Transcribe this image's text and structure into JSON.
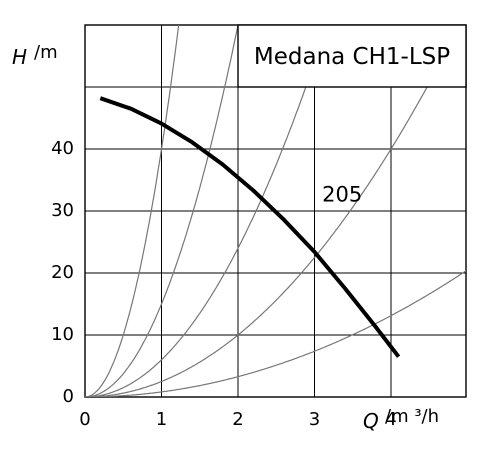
{
  "chart_data": {
    "type": "line",
    "title": "Medana CH1-LSP",
    "xlabel": {
      "symbol": "Q",
      "unit": "/m ³/h"
    },
    "ylabel": {
      "symbol": "H",
      "unit": "/m"
    },
    "x_ticks": [
      "0",
      "1",
      "2",
      "3",
      "4"
    ],
    "y_ticks": [
      "0",
      "10",
      "20",
      "30",
      "40"
    ],
    "xlim": [
      0,
      5
    ],
    "ylim": [
      0,
      50
    ],
    "grid": true,
    "series": [
      {
        "name": "205",
        "color": "#000000",
        "emphasis": "bold",
        "x": [
          0.2,
          0.6,
          1.0,
          1.4,
          1.8,
          2.2,
          2.6,
          3.0,
          3.4,
          3.8,
          4.1
        ],
        "y": [
          48.2,
          46.5,
          44.1,
          41.1,
          37.5,
          33.3,
          28.6,
          23.4,
          17.5,
          11.3,
          6.5
        ]
      }
    ],
    "system_curves": {
      "color": "#777777",
      "form": "H = k·Q²",
      "k": [
        40,
        15,
        6,
        2.5,
        0.82
      ]
    }
  }
}
